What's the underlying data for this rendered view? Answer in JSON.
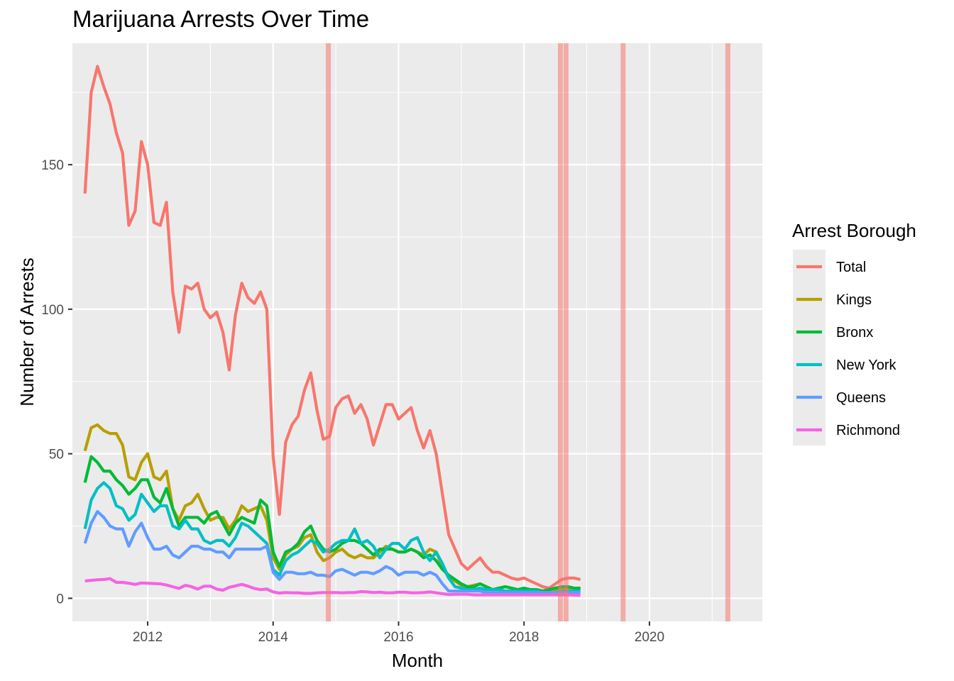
{
  "chart_data": {
    "type": "line",
    "title": "Marijuana Arrests Over Time",
    "xlabel": "Month",
    "ylabel": "Number of Arrests",
    "legend_title": "Arrest Borough",
    "legend_position": "right",
    "grid": true,
    "xlim": [
      2010.8,
      2021.8
    ],
    "ylim": [
      -8,
      192
    ],
    "x_ticks": [
      2012,
      2014,
      2016,
      2018,
      2020
    ],
    "x_tick_labels": [
      "2012",
      "2014",
      "2016",
      "2018",
      "2020"
    ],
    "y_ticks": [
      0,
      50,
      100,
      150
    ],
    "y_tick_labels": [
      "0",
      "50",
      "100",
      "150"
    ],
    "vertical_markers": [
      2014.88,
      2018.58,
      2018.67,
      2019.58,
      2021.25
    ],
    "x_start": 2011.0,
    "x_step": 0.1,
    "series": [
      {
        "name": "Total",
        "color": "#F8766D",
        "values": [
          140,
          175,
          184,
          177,
          171,
          161,
          154,
          129,
          134,
          158,
          150,
          130,
          129,
          137,
          106,
          92,
          108,
          107,
          109,
          100,
          97,
          99,
          92,
          79,
          98,
          109,
          104,
          102,
          106,
          100,
          49,
          29,
          54,
          60,
          63,
          72,
          78,
          65,
          55,
          56,
          66,
          69,
          70,
          64,
          67,
          62,
          53,
          60,
          67,
          67,
          62,
          64,
          66,
          58,
          52,
          58,
          50,
          36,
          22,
          17,
          12,
          10,
          12,
          14,
          11,
          9,
          9,
          8,
          7,
          6.5,
          7,
          6,
          5,
          4,
          3.5,
          5,
          6.5,
          7,
          7,
          6.5
        ]
      },
      {
        "name": "Kings",
        "color": "#B79F00",
        "values": [
          51,
          59,
          60,
          58,
          57,
          57,
          53,
          42,
          41,
          47,
          50,
          42,
          41,
          44,
          31,
          27,
          32,
          33,
          36,
          31,
          27,
          28,
          28,
          24,
          27,
          32,
          30,
          31,
          32,
          27,
          14,
          10,
          15,
          17,
          18,
          21,
          22,
          16,
          13,
          14,
          16,
          17,
          15,
          14,
          15,
          14,
          14,
          16,
          18,
          17,
          16,
          16,
          17,
          16,
          15,
          17,
          16,
          11,
          7,
          6,
          4.5,
          4,
          4.5,
          5,
          4,
          3,
          3.5,
          4,
          3.5,
          3,
          3,
          3,
          3,
          2.5,
          3,
          3,
          3.5,
          3.5,
          3.5,
          3.5
        ]
      },
      {
        "name": "Bronx",
        "color": "#00BA38",
        "values": [
          40,
          49,
          47,
          44,
          44,
          41,
          39,
          36,
          38,
          41,
          41,
          35,
          33,
          38,
          31,
          25,
          28,
          28,
          28,
          26,
          29,
          30,
          26,
          22,
          26,
          28,
          27,
          26,
          34,
          32,
          16,
          11,
          16,
          17,
          19,
          23,
          25,
          20,
          17,
          16,
          17,
          19,
          20,
          20,
          19,
          17,
          15,
          17,
          17,
          17,
          16,
          16,
          17,
          16,
          14,
          15,
          13,
          10,
          8,
          6.5,
          5,
          4,
          4,
          5,
          4,
          3,
          3.5,
          4,
          3.5,
          3,
          3.5,
          3,
          3,
          2.5,
          3,
          3.5,
          4,
          4,
          3.5,
          3.5
        ]
      },
      {
        "name": "New York",
        "color": "#00BFC4",
        "values": [
          24,
          34,
          38,
          40,
          38,
          32,
          31,
          27,
          29,
          36,
          33,
          30,
          32,
          32,
          25,
          24,
          27,
          24,
          24,
          20,
          19,
          20,
          20,
          18,
          21,
          26,
          25,
          23,
          21,
          19,
          10,
          8,
          13,
          15,
          16,
          18,
          20,
          19,
          16,
          17,
          19,
          20,
          20,
          24,
          19,
          20,
          18,
          14,
          17,
          19,
          19,
          17,
          20,
          21,
          16,
          13,
          16,
          12,
          7,
          4,
          3.5,
          3,
          3,
          3.5,
          3,
          3,
          3,
          2.5,
          2.5,
          2.5,
          2.5,
          2.5,
          2.5,
          2,
          2,
          2,
          2.5,
          2.5,
          2.5,
          2.5
        ]
      },
      {
        "name": "Queens",
        "color": "#619CFF",
        "values": [
          19,
          26,
          30,
          28,
          25,
          24,
          24,
          18,
          23,
          26,
          21,
          17,
          17,
          18,
          15,
          14,
          16,
          18,
          18,
          17,
          17,
          16,
          16,
          14,
          17,
          17,
          17,
          17,
          17,
          18,
          9,
          6.5,
          9,
          9,
          8.5,
          8.5,
          9,
          8,
          8,
          7.5,
          9.5,
          10,
          9,
          8,
          9,
          9,
          8.5,
          9.5,
          11,
          10,
          8,
          9,
          9,
          9,
          8,
          9,
          8,
          5,
          2.5,
          2.5,
          2.5,
          2.5,
          2.5,
          2.5,
          2,
          2,
          2,
          2,
          2,
          2,
          2,
          2,
          2,
          2,
          2,
          2,
          2,
          2,
          2,
          2
        ]
      },
      {
        "name": "Richmond",
        "color": "#F564E3",
        "values": [
          6,
          6.2,
          6.4,
          6.5,
          6.8,
          5.5,
          5.5,
          5.2,
          4.8,
          5.3,
          5.2,
          5.1,
          5,
          4.6,
          4,
          3.4,
          4.5,
          4,
          3.2,
          4.2,
          4.2,
          3.2,
          2.8,
          3.8,
          4.3,
          4.8,
          4.2,
          3.4,
          3,
          3.2,
          2.2,
          1.8,
          2,
          1.9,
          1.9,
          1.7,
          1.7,
          1.9,
          2,
          2,
          2,
          1.9,
          2,
          2,
          2.3,
          2.2,
          2,
          2.1,
          1.9,
          1.9,
          2.1,
          2.1,
          1.9,
          1.9,
          2,
          2.2,
          1.9,
          1.6,
          1.3,
          1.4,
          1.4,
          1.4,
          1.2,
          1.2,
          1.2,
          1.2,
          1.2,
          1.2,
          1.2,
          1.2,
          1.2,
          1.2,
          1.2,
          1.2,
          1.2,
          1.2,
          1.2,
          1.2,
          1.1,
          1
        ]
      }
    ]
  }
}
